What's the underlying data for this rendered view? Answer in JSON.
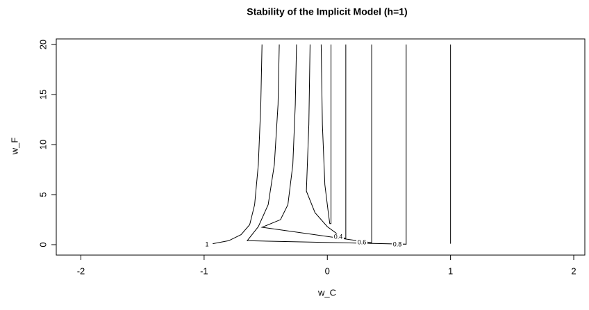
{
  "chart_data": {
    "type": "contour",
    "title": "Stability of the Implicit Model (h=1)",
    "x_label": "w_C",
    "y_label": "w_F",
    "xlim": [
      -2.2,
      2.09
    ],
    "ylim": [
      -1.04,
      20.56
    ],
    "xticks": [
      -2,
      -1,
      0,
      1,
      2
    ],
    "yticks": [
      0,
      5,
      10,
      15,
      20
    ],
    "color": "#000000",
    "series": [
      {
        "level": 1,
        "x": [
          -0.93,
          -0.8,
          -0.7,
          -0.63,
          -0.59,
          -0.56,
          -0.54,
          -0.53
        ],
        "y": [
          0.1,
          0.4,
          1,
          2,
          4,
          8,
          14,
          20
        ]
      },
      {
        "level": 0.8,
        "x": [
          -0.39,
          -0.4,
          -0.43,
          -0.48,
          -0.56,
          -0.65,
          0.64,
          0.64
        ],
        "y": [
          20,
          14,
          8,
          4,
          1.8,
          0.4,
          0.05,
          20
        ]
      },
      {
        "level": 0.6,
        "x": [
          -0.25,
          -0.26,
          -0.28,
          -0.32,
          -0.38,
          -0.53,
          0.36,
          0.36
        ],
        "y": [
          20,
          14,
          8,
          4,
          2.5,
          1.74,
          0.2,
          20
        ]
      },
      {
        "level": 0.4,
        "x": [
          -0.14,
          -0.15,
          -0.17,
          -0.1,
          0.0,
          0.1,
          0.15,
          0.15
        ],
        "y": [
          20,
          12,
          5.35,
          3.2,
          1.8,
          0.9,
          0.6,
          20
        ]
      },
      {
        "x": [
          -0.05,
          -0.04,
          -0.02,
          0.01,
          0.02,
          0.03,
          0.03
        ],
        "y": [
          20,
          12,
          6,
          3,
          2.1,
          2.1,
          20
        ]
      },
      {
        "x": [
          1,
          1
        ],
        "y": [
          0.1,
          20
        ]
      }
    ]
  }
}
